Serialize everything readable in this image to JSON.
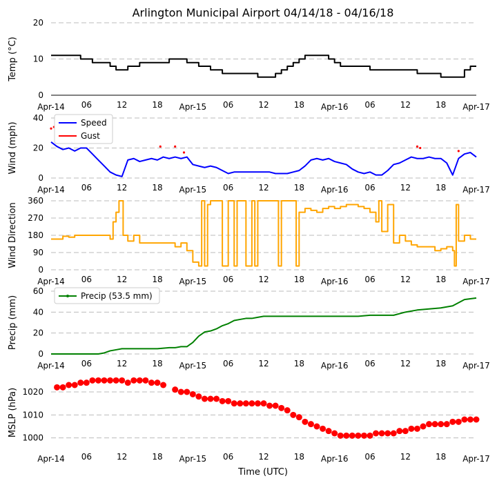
{
  "chart_data": {
    "type": "line",
    "title": "Arlington Municipal Airport 04/14/18 - 04/16/18",
    "xlabel": "Time (UTC)",
    "x_unit": "hours since 2018-04-14 00:00 UTC",
    "xlim": [
      0,
      72
    ],
    "x_ticks": [
      {
        "x": 0,
        "label": "Apr-14"
      },
      {
        "x": 6,
        "label": "06"
      },
      {
        "x": 12,
        "label": "12"
      },
      {
        "x": 18,
        "label": "18"
      },
      {
        "x": 24,
        "label": "Apr-15"
      },
      {
        "x": 30,
        "label": "06"
      },
      {
        "x": 36,
        "label": "12"
      },
      {
        "x": 42,
        "label": "18"
      },
      {
        "x": 48,
        "label": "Apr-16"
      },
      {
        "x": 54,
        "label": "06"
      },
      {
        "x": 60,
        "label": "12"
      },
      {
        "x": 66,
        "label": "18"
      },
      {
        "x": 72,
        "label": "Apr-17"
      }
    ],
    "grid": true,
    "panels": [
      {
        "id": "temp",
        "ylabel": "Temp ($^\\circ$C)",
        "ylabel_display": "Temp (°C)",
        "ylim": [
          0,
          20
        ],
        "yticks": [
          0,
          10,
          20
        ],
        "series": [
          {
            "kind": "step",
            "color": "#000000",
            "x": [
              0,
              2,
              4,
              5,
              6,
              7,
              8,
              9,
              10,
              11,
              12,
              13,
              14,
              15,
              16,
              17,
              18,
              19,
              20,
              21,
              22,
              23,
              24,
              25,
              26,
              27,
              28,
              29,
              30,
              31,
              32,
              33,
              34,
              35,
              36,
              37,
              38,
              39,
              40,
              41,
              42,
              43,
              44,
              45,
              46,
              47,
              48,
              49,
              50,
              51,
              52,
              53,
              54,
              55,
              56,
              57,
              58,
              59,
              60,
              61,
              62,
              63,
              64,
              65,
              66,
              67,
              68,
              69,
              70,
              71,
              72
            ],
            "y": [
              11,
              11,
              11,
              10,
              10,
              9,
              9,
              9,
              8,
              7,
              7,
              8,
              8,
              9,
              9,
              9,
              9,
              9,
              10,
              10,
              10,
              9,
              9,
              8,
              8,
              7,
              7,
              6,
              6,
              6,
              6,
              6,
              6,
              5,
              5,
              5,
              6,
              7,
              8,
              9,
              10,
              11,
              11,
              11,
              11,
              10,
              9,
              8,
              8,
              8,
              8,
              8,
              7,
              7,
              7,
              7,
              7,
              7,
              7,
              7,
              6,
              6,
              6,
              6,
              5,
              5,
              5,
              5,
              7,
              8,
              8
            ]
          }
        ]
      },
      {
        "id": "wind",
        "ylabel": "Wind (mph)",
        "ylim": [
          0,
          40
        ],
        "yticks": [
          0,
          20,
          40
        ],
        "legend": {
          "position": "top-left"
        },
        "series": [
          {
            "name": "Speed",
            "color": "#0000ff",
            "kind": "line",
            "x": [
              0,
              1,
              2,
              3,
              4,
              5,
              6,
              7,
              8,
              9,
              10,
              11,
              12,
              13,
              14,
              15,
              16,
              17,
              18,
              19,
              20,
              21,
              22,
              23,
              24,
              25,
              26,
              27,
              28,
              29,
              30,
              31,
              32,
              33,
              34,
              35,
              36,
              37,
              38,
              39,
              40,
              41,
              42,
              43,
              44,
              45,
              46,
              47,
              48,
              49,
              50,
              51,
              52,
              53,
              54,
              55,
              56,
              57,
              58,
              59,
              60,
              61,
              62,
              63,
              64,
              65,
              66,
              67,
              68,
              69,
              70,
              71,
              72
            ],
            "y": [
              24,
              21,
              19,
              20,
              18,
              20,
              20,
              16,
              12,
              8,
              4,
              2,
              1,
              12,
              13,
              11,
              12,
              13,
              12,
              14,
              13,
              14,
              13,
              14,
              9,
              8,
              7,
              8,
              7,
              5,
              3,
              4,
              4,
              4,
              4,
              4,
              4,
              4,
              3,
              3,
              3,
              4,
              5,
              8,
              12,
              13,
              12,
              13,
              11,
              10,
              9,
              6,
              4,
              3,
              4,
              2,
              2,
              5,
              9,
              10,
              12,
              14,
              13,
              13,
              14,
              13,
              13,
              10,
              2,
              13,
              16,
              17,
              14
            ]
          },
          {
            "name": "Gust",
            "color": "#ff0000",
            "kind": "points",
            "x": [
              0,
              0.5,
              1,
              1.5,
              2,
              2.5,
              3,
              3.5,
              4,
              18.5,
              21,
              22.5,
              62,
              62.5,
              69
            ],
            "y": [
              33,
              34,
              31,
              32,
              30,
              31,
              32,
              31,
              30,
              21,
              21,
              17,
              21,
              20,
              18
            ]
          }
        ]
      },
      {
        "id": "wdir",
        "ylabel": "Wind Direction",
        "ylim": [
          0,
          360
        ],
        "yticks": [
          0,
          90,
          180,
          270,
          360
        ],
        "series": [
          {
            "kind": "step",
            "color": "#ffa500",
            "x": [
              0,
              2,
              3,
              4,
              5,
              6,
              7,
              8,
              9,
              10,
              10.5,
              11,
              11.5,
              12,
              12.2,
              13,
              14,
              15,
              16,
              17,
              18,
              19,
              20,
              21,
              22,
              23,
              24,
              25,
              25.5,
              26,
              26.5,
              27,
              28,
              29,
              30,
              31,
              31.5,
              32,
              33,
              34,
              34.5,
              35,
              36,
              37,
              38,
              38.5,
              39,
              40,
              41,
              41.5,
              42,
              43,
              44,
              45,
              46,
              47,
              48,
              49,
              50,
              51,
              52,
              53,
              54,
              55,
              55.5,
              56,
              57,
              58,
              59,
              60,
              61,
              62,
              63,
              64,
              65,
              66,
              67,
              68,
              68.3,
              68.6,
              69,
              70,
              71,
              72
            ],
            "y": [
              160,
              175,
              170,
              180,
              180,
              180,
              180,
              180,
              180,
              160,
              250,
              300,
              360,
              360,
              180,
              150,
              180,
              140,
              140,
              140,
              140,
              140,
              140,
              120,
              140,
              100,
              40,
              20,
              360,
              20,
              340,
              360,
              360,
              20,
              360,
              20,
              360,
              360,
              20,
              360,
              20,
              360,
              360,
              360,
              360,
              20,
              360,
              360,
              360,
              20,
              300,
              320,
              310,
              300,
              320,
              330,
              320,
              330,
              340,
              340,
              330,
              320,
              300,
              250,
              360,
              200,
              340,
              140,
              180,
              150,
              130,
              120,
              120,
              120,
              100,
              110,
              120,
              100,
              20,
              340,
              150,
              180,
              160,
              160
            ]
          }
        ]
      },
      {
        "id": "precip",
        "ylabel": "Precip (mm)",
        "ylim": [
          0,
          60
        ],
        "yticks": [
          0,
          20,
          40,
          60
        ],
        "legend": {
          "position": "top-left"
        },
        "series": [
          {
            "name": "Precip (53.5 mm)",
            "color": "#008000",
            "kind": "line",
            "x": [
              0,
              2,
              4,
              6,
              8,
              9,
              10,
              11,
              12,
              14,
              16,
              18,
              20,
              21,
              22,
              23,
              24,
              25,
              26,
              27,
              28,
              29,
              30,
              31,
              32,
              33,
              34,
              35,
              36,
              38,
              40,
              42,
              44,
              46,
              48,
              50,
              52,
              54,
              56,
              58,
              60,
              62,
              64,
              66,
              68,
              70,
              72
            ],
            "y": [
              0,
              0,
              0,
              0,
              0,
              1,
              3,
              4,
              5,
              5,
              5,
              5,
              6,
              6,
              7,
              7,
              11,
              17,
              21,
              22,
              24,
              27,
              29,
              32,
              33,
              34,
              34,
              35,
              36,
              36,
              36,
              36,
              36,
              36,
              36,
              36,
              36,
              37,
              37,
              37,
              40,
              42,
              43,
              44,
              46,
              52,
              53.5
            ]
          }
        ]
      },
      {
        "id": "mslp",
        "ylabel": "MSLP (hPa)",
        "ylim": [
          996,
          1026
        ],
        "yticks": [
          1000,
          1010,
          1020
        ],
        "series": [
          {
            "kind": "markers",
            "color": "#ff0000",
            "x": [
              1,
              2,
              3,
              4,
              5,
              6,
              7,
              8,
              9,
              10,
              11,
              12,
              13,
              14,
              15,
              16,
              17,
              18,
              19,
              21,
              22,
              23,
              24,
              25,
              26,
              27,
              28,
              29,
              30,
              31,
              32,
              33,
              34,
              35,
              36,
              37,
              38,
              39,
              40,
              41,
              42,
              43,
              44,
              45,
              46,
              47,
              48,
              49,
              50,
              51,
              52,
              53,
              54,
              55,
              56,
              57,
              58,
              59,
              60,
              61,
              62,
              63,
              64,
              65,
              66,
              67,
              68,
              69,
              70,
              71,
              72
            ],
            "y": [
              1022,
              1022,
              1023,
              1023,
              1024,
              1024,
              1025,
              1025,
              1025,
              1025,
              1025,
              1025,
              1024,
              1025,
              1025,
              1025,
              1024,
              1024,
              1023,
              1021,
              1020,
              1020,
              1019,
              1018,
              1017,
              1017,
              1017,
              1016,
              1016,
              1015,
              1015,
              1015,
              1015,
              1015,
              1015,
              1014,
              1014,
              1013,
              1012,
              1010,
              1009,
              1007,
              1006,
              1005,
              1004,
              1003,
              1002,
              1001,
              1001,
              1001,
              1001,
              1001,
              1001,
              1002,
              1002,
              1002,
              1002,
              1003,
              1003,
              1004,
              1004,
              1005,
              1006,
              1006,
              1006,
              1006,
              1007,
              1007,
              1008,
              1008,
              1008
            ]
          }
        ]
      }
    ]
  }
}
